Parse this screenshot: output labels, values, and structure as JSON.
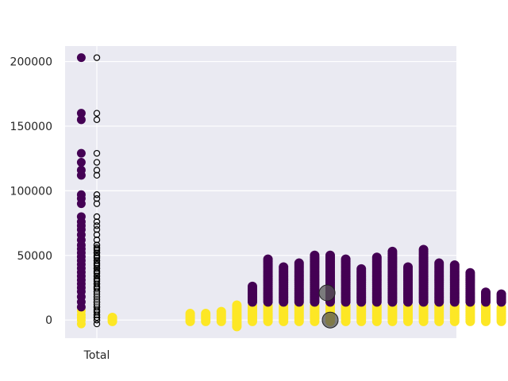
{
  "chart_data": {
    "type": "scatter",
    "title": "",
    "xlabel": "",
    "ylabel": "",
    "ylim": [
      -14000,
      212000
    ],
    "yticks": [
      0,
      50000,
      100000,
      150000,
      200000
    ],
    "ytick_labels": [
      "0",
      "50000",
      "100000",
      "150000",
      "200000"
    ],
    "xtick_labels": [
      "Total"
    ],
    "grid": true,
    "background": "#eaeaf2",
    "colors": {
      "high_group": "#440154",
      "low_group": "#fde725",
      "outlier_edge": "#000000",
      "mean_marker": "#555555",
      "grid": "#ffffff"
    },
    "total_column": {
      "values": [
        203000,
        160000,
        155000,
        129000,
        122000,
        116000,
        112000,
        97000,
        94000,
        90000,
        80000,
        76000,
        73000,
        70000,
        66000,
        62000,
        58000,
        55000,
        52000,
        49000,
        46000,
        43000,
        40000,
        37000,
        34000,
        31000,
        28000,
        25000,
        22000,
        18000,
        14000,
        10000,
        7000,
        4000,
        2000,
        0,
        -3000
      ],
      "boxplot": {
        "q1": 12000,
        "median": 17000,
        "q3": 22000,
        "whisker_low": 2000,
        "whisker_high": 30000
      }
    },
    "columns": [
      {
        "x": 1,
        "low": [
          -1000,
          3000
        ],
        "high": null
      },
      {
        "x": 6,
        "low": [
          -1000,
          6000
        ],
        "high": null
      },
      {
        "x": 7,
        "low": [
          -1000,
          6000
        ],
        "high": null
      },
      {
        "x": 8,
        "low": [
          -1000,
          7000
        ],
        "high": null
      },
      {
        "x": 9,
        "low": [
          -5000,
          12000
        ],
        "high": null
      },
      {
        "x": 10,
        "low": [
          -1000,
          12000
        ],
        "high": [
          14000,
          26000
        ]
      },
      {
        "x": 11,
        "low": [
          -1000,
          12000
        ],
        "high": [
          14000,
          47000
        ]
      },
      {
        "x": 12,
        "low": [
          -1000,
          12000
        ],
        "high": [
          14000,
          42000
        ]
      },
      {
        "x": 13,
        "low": [
          -1000,
          12000
        ],
        "high": [
          14000,
          45000
        ]
      },
      {
        "x": 14,
        "low": [
          -1000,
          12000
        ],
        "high": [
          14000,
          50000
        ]
      },
      {
        "x": 15,
        "low": [
          -1000,
          12000
        ],
        "high": [
          14000,
          50000
        ]
      },
      {
        "x": 16,
        "low": [
          -1000,
          12000
        ],
        "high": [
          14000,
          47000
        ]
      },
      {
        "x": 17,
        "low": [
          -1000,
          12000
        ],
        "high": [
          14000,
          40000
        ]
      },
      {
        "x": 18,
        "low": [
          -1000,
          12000
        ],
        "high": [
          14000,
          49000
        ]
      },
      {
        "x": 19,
        "low": [
          -1000,
          12000
        ],
        "high": [
          14000,
          53000
        ]
      },
      {
        "x": 20,
        "low": [
          -1000,
          12000
        ],
        "high": [
          14000,
          42000
        ]
      },
      {
        "x": 21,
        "low": [
          -1000,
          12000
        ],
        "high": [
          14000,
          55000
        ]
      },
      {
        "x": 22,
        "low": [
          -1000,
          12000
        ],
        "high": [
          14000,
          44000
        ]
      },
      {
        "x": 23,
        "low": [
          -1000,
          12000
        ],
        "high": [
          14000,
          43000
        ]
      },
      {
        "x": 24,
        "low": [
          -1000,
          12000
        ],
        "high": [
          14000,
          37000
        ]
      },
      {
        "x": 25,
        "low": [
          -1000,
          12000
        ],
        "high": [
          14000,
          22000
        ]
      },
      {
        "x": 26,
        "low": [
          -1000,
          10000
        ],
        "high": [
          14000,
          21000
        ]
      }
    ],
    "mean_markers": [
      {
        "x": 14.8,
        "y": 21000
      },
      {
        "x": 15.0,
        "y": 0
      }
    ]
  }
}
